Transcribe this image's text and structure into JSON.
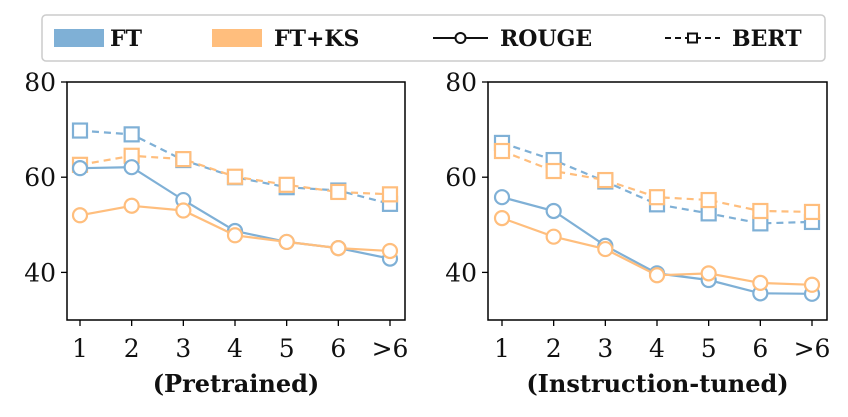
{
  "legend": {
    "entries": [
      {
        "label": "FT",
        "kind": "patch",
        "color": "#7fb0d6"
      },
      {
        "label": "FT+KS",
        "kind": "patch",
        "color": "#ffbe7d"
      },
      {
        "label": "ROUGE",
        "kind": "solid-circle",
        "color": "#111111"
      },
      {
        "label": "BERT",
        "kind": "dashed-square",
        "color": "#111111"
      }
    ]
  },
  "colors": {
    "FT": "#7fb0d6",
    "FT+KS": "#ffbe7d"
  },
  "chart_data": [
    {
      "type": "line",
      "xlabel": "(Pretrained)",
      "categories": [
        "1",
        "2",
        "3",
        "4",
        "5",
        "6",
        ">6"
      ],
      "ylim": [
        30,
        80
      ],
      "yticks": [
        40,
        60,
        80
      ],
      "grid": false,
      "series": [
        {
          "name": "FT",
          "metric": "ROUGE",
          "values": [
            61.9,
            62.1,
            55.2,
            48.7,
            46.4,
            45.1,
            42.9
          ]
        },
        {
          "name": "FT+KS",
          "metric": "ROUGE",
          "values": [
            52.0,
            54.0,
            53.0,
            47.8,
            46.4,
            45.1,
            44.5
          ]
        },
        {
          "name": "FT",
          "metric": "BERT",
          "values": [
            69.8,
            69.0,
            63.6,
            60.0,
            57.9,
            57.2,
            54.4
          ]
        },
        {
          "name": "FT+KS",
          "metric": "BERT",
          "values": [
            62.6,
            64.5,
            63.8,
            60.1,
            58.4,
            56.9,
            56.4
          ]
        }
      ]
    },
    {
      "type": "line",
      "xlabel": "(Instruction-tuned)",
      "categories": [
        "1",
        "2",
        "3",
        "4",
        "5",
        "6",
        ">6"
      ],
      "ylim": [
        30,
        80
      ],
      "yticks": [
        40,
        60,
        80
      ],
      "grid": false,
      "series": [
        {
          "name": "FT",
          "metric": "ROUGE",
          "values": [
            55.8,
            52.9,
            45.6,
            39.8,
            38.4,
            35.6,
            35.5
          ]
        },
        {
          "name": "FT+KS",
          "metric": "ROUGE",
          "values": [
            51.4,
            47.5,
            44.9,
            39.4,
            39.8,
            37.8,
            37.4
          ]
        },
        {
          "name": "FT",
          "metric": "BERT",
          "values": [
            67.2,
            63.6,
            59.1,
            54.3,
            52.4,
            50.3,
            50.6
          ]
        },
        {
          "name": "FT+KS",
          "metric": "BERT",
          "values": [
            65.5,
            61.3,
            59.4,
            55.8,
            55.2,
            52.9,
            52.7
          ]
        }
      ]
    }
  ]
}
